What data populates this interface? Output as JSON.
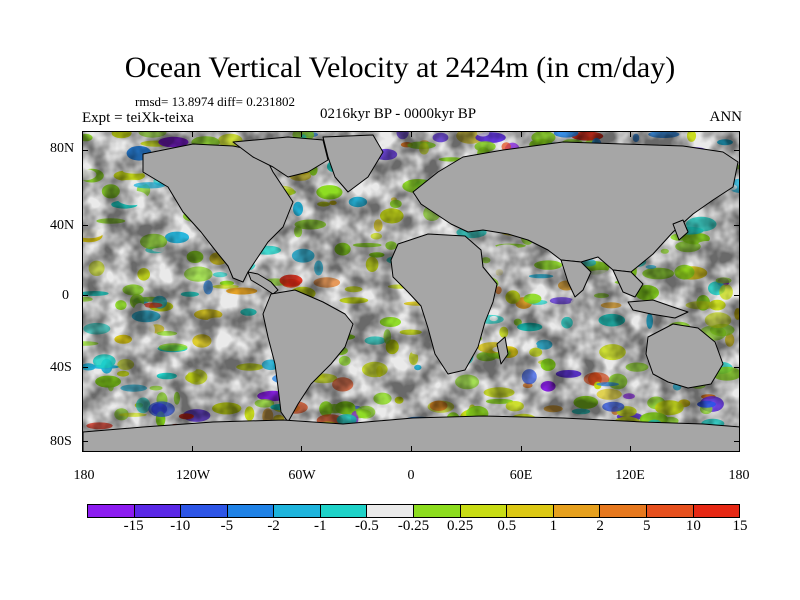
{
  "title": "Ocean Vertical Velocity at 2424m (in cm/day)",
  "stats": "rmsd= 13.8974 diff= 0.231802",
  "experiment": "Expt = teiXk-teixa",
  "period": "0216kyr BP - 0000kyr BP",
  "season": "ANN",
  "map": {
    "projection": "cylindrical equidistant",
    "land_color": "#a6a6a6",
    "coastline_color": "#000000",
    "lat_ticks": [
      "80N",
      "40N",
      "0",
      "40S",
      "80S"
    ],
    "lon_ticks": [
      "180",
      "120W",
      "60W",
      "0",
      "60E",
      "120E",
      "180"
    ]
  },
  "colorbar": {
    "colors": [
      "#8c1cf0",
      "#5a28e6",
      "#2d55e6",
      "#1f82e6",
      "#1eb4dc",
      "#1ed2c8",
      "#eaeaea",
      "#8cdc1e",
      "#c8dc14",
      "#dcc814",
      "#e6a01e",
      "#e6781e",
      "#e6501e",
      "#e62814"
    ],
    "labels": [
      "-15",
      "-10",
      "-5",
      "-2",
      "-1",
      "-0.5",
      "-0.25",
      "0.25",
      "0.5",
      "1",
      "2",
      "5",
      "10",
      "15"
    ]
  }
}
